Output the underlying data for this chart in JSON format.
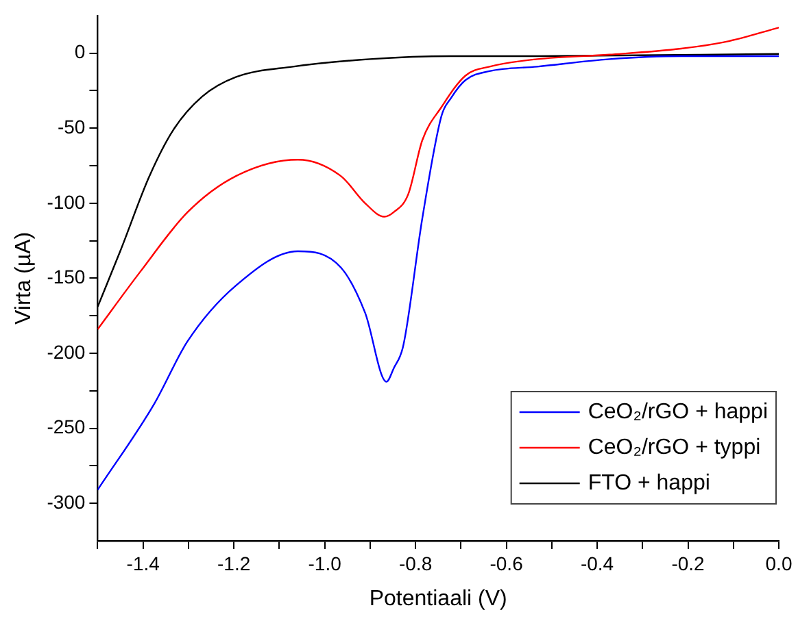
{
  "chart_data": {
    "type": "line",
    "xlabel": "Potentiaali (V)",
    "ylabel": "Virta (µA)",
    "xlim": [
      -1.5,
      0
    ],
    "ylim": [
      -325,
      25
    ],
    "xticks": [
      {
        "value": -1.5,
        "label": null
      },
      {
        "value": -1.4,
        "label": "-1.4"
      },
      {
        "value": -1.3,
        "label": null
      },
      {
        "value": -1.2,
        "label": "-1.2"
      },
      {
        "value": -1.1,
        "label": null
      },
      {
        "value": -1.0,
        "label": "-1.0"
      },
      {
        "value": -0.9,
        "label": null
      },
      {
        "value": -0.8,
        "label": "-0.8"
      },
      {
        "value": -0.7,
        "label": null
      },
      {
        "value": -0.6,
        "label": "-0.6"
      },
      {
        "value": -0.5,
        "label": null
      },
      {
        "value": -0.4,
        "label": "-0.4"
      },
      {
        "value": -0.3,
        "label": null
      },
      {
        "value": -0.2,
        "label": "-0.2"
      },
      {
        "value": -0.1,
        "label": null
      },
      {
        "value": 0,
        "label": "0.0"
      }
    ],
    "yticks": [
      -300,
      {
        "value": -275,
        "label": null
      },
      -250,
      {
        "value": -225,
        "label": null
      },
      -200,
      {
        "value": -175,
        "label": null
      },
      -150,
      {
        "value": -125,
        "label": null
      },
      -100,
      {
        "value": -75,
        "label": null
      },
      -50,
      {
        "value": -25,
        "label": null
      },
      0
    ],
    "grid": false,
    "legend": "bottom right",
    "line_style": "solid",
    "marker": "none",
    "series": [
      {
        "name": "CeO₂/rGO + happi",
        "color": "#0000ff",
        "x": [
          -1.5,
          -1.376,
          -1.302,
          -1.196,
          -1.059,
          -0.964,
          -0.911,
          -0.864,
          -0.848,
          -0.827,
          -0.785,
          -0.743,
          -0.722,
          -0.69,
          -0.637,
          -0.532,
          -0.373,
          -0.215,
          0
        ],
        "values": [
          -291,
          -234,
          -192,
          -155,
          -132,
          -143,
          -173,
          -219,
          -210,
          -195,
          -110,
          -42,
          -30,
          -18,
          -12,
          -9,
          -4,
          -2,
          -2
        ]
      },
      {
        "name": "CeO₂/rGO + typpi",
        "color": "#ff0000",
        "x": [
          -1.5,
          -1.407,
          -1.302,
          -1.196,
          -1.059,
          -0.964,
          -0.911,
          -0.869,
          -0.848,
          -0.816,
          -0.785,
          -0.743,
          -0.69,
          -0.637,
          -0.532,
          -0.373,
          -0.215,
          -0.11,
          0
        ],
        "values": [
          -184,
          -146,
          -106,
          -82,
          -71,
          -82,
          -100,
          -109,
          -106,
          -94,
          -58,
          -36,
          -15,
          -9,
          -4,
          -1,
          3,
          8,
          17
        ]
      },
      {
        "name": "FTO + happi",
        "color": "#000000",
        "x": [
          -1.5,
          -1.449,
          -1.386,
          -1.333,
          -1.27,
          -1.196,
          -1.07,
          -0.901,
          -0.722,
          -0.532,
          0
        ],
        "values": [
          -169,
          -131,
          -82,
          -51,
          -29,
          -16,
          -9,
          -4,
          -2,
          -2,
          -0.5
        ]
      }
    ]
  }
}
